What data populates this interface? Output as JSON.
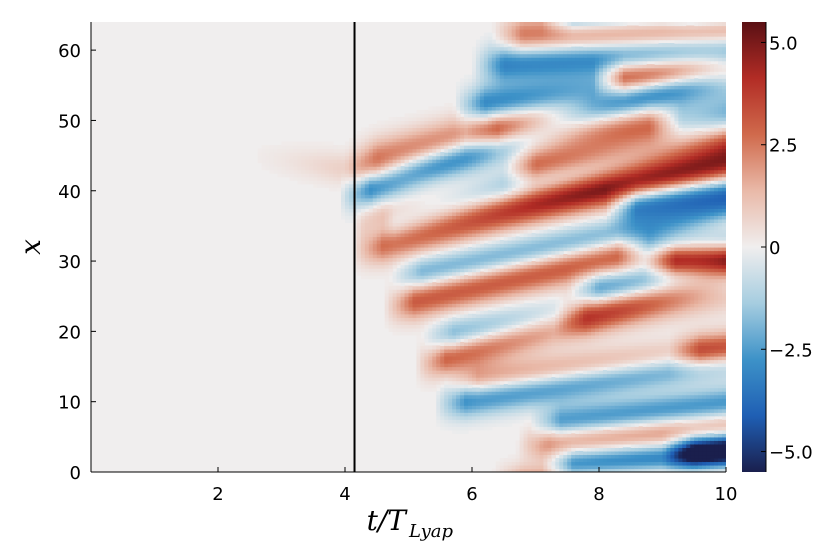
{
  "chart_data": {
    "type": "heatmap",
    "title": "",
    "xlabel_main": "t/T",
    "xlabel_sub": "Lyap",
    "ylabel": "x",
    "xlim": [
      0,
      10
    ],
    "ylim": [
      0,
      64
    ],
    "x_ticks": [
      2,
      4,
      6,
      8,
      10
    ],
    "y_ticks": [
      0,
      10,
      20,
      30,
      40,
      50,
      60
    ],
    "vertical_line_x": 4.15,
    "colorbar": {
      "range": [
        -5.5,
        5.5
      ],
      "ticks": [
        5.0,
        2.5,
        0,
        -2.5,
        -5.0
      ],
      "tick_labels": [
        "5.0",
        "2.5",
        "0",
        "−2.5",
        "−5.0"
      ],
      "colors": [
        "#1a1f4d",
        "#1f5fb4",
        "#3d92c8",
        "#a6cde0",
        "#f0eeee",
        "#e9b9a8",
        "#d06a4c",
        "#b22c25",
        "#5a1014"
      ]
    },
    "field_description_note": null,
    "bands": [
      {
        "t_start": 2.5,
        "x_start": 45,
        "slope": -1.2,
        "amp": 0.9,
        "width": 1.6,
        "t_peak": 4.4
      },
      {
        "t_start": 4.2,
        "x_start": 40,
        "slope": 3.0,
        "amp": -3.5,
        "width": 1.8
      },
      {
        "t_start": 4.3,
        "x_start": 44,
        "slope": 2.4,
        "amp": 2.6,
        "width": 2.0
      },
      {
        "t_start": 4.4,
        "x_start": 36,
        "slope": 1.2,
        "amp": 2.0,
        "width": 1.7
      },
      {
        "t_start": 4.4,
        "x_start": 32,
        "slope": 2.2,
        "amp": 3.0,
        "width": 1.8
      },
      {
        "t_start": 4.6,
        "x_start": 35,
        "slope": 2.6,
        "amp": -2.4,
        "width": 1.7
      },
      {
        "t_start": 4.9,
        "x_start": 24,
        "slope": 2.0,
        "amp": 3.2,
        "width": 1.8
      },
      {
        "t_start": 5.0,
        "x_start": 28,
        "slope": 1.8,
        "amp": -2.2,
        "width": 1.6
      },
      {
        "t_start": 5.4,
        "x_start": 16,
        "slope": 2.6,
        "amp": 3.4,
        "width": 1.8
      },
      {
        "t_start": 5.5,
        "x_start": 19,
        "slope": 1.6,
        "amp": -2.6,
        "width": 1.7
      },
      {
        "t_start": 5.7,
        "x_start": 10,
        "slope": 1.4,
        "amp": -3.0,
        "width": 1.7
      },
      {
        "t_start": 5.9,
        "x_start": 13,
        "slope": 1.0,
        "amp": 2.2,
        "width": 1.6
      },
      {
        "t_start": 6.0,
        "x_start": 52,
        "slope": 1.0,
        "amp": -3.4,
        "width": 1.9
      },
      {
        "t_start": 6.2,
        "x_start": 48,
        "slope": 0.6,
        "amp": 2.6,
        "width": 1.8
      },
      {
        "t_start": 6.3,
        "x_start": 58,
        "slope": 0.6,
        "amp": -3.2,
        "width": 1.9
      },
      {
        "t_start": 6.6,
        "x_start": 62,
        "slope": 0.2,
        "amp": 2.8,
        "width": 1.8
      },
      {
        "t_start": 6.8,
        "x_start": 43,
        "slope": 1.4,
        "amp": 3.6,
        "width": 1.9
      },
      {
        "t_start": 7.0,
        "x_start": 4,
        "slope": 0.8,
        "amp": 2.4,
        "width": 1.6
      },
      {
        "t_start": 7.2,
        "x_start": 7,
        "slope": 1.0,
        "amp": -2.8,
        "width": 1.6
      },
      {
        "t_start": 7.4,
        "x_start": 1,
        "slope": 0.6,
        "amp": -3.6,
        "width": 1.7
      },
      {
        "t_start": 7.6,
        "x_start": 22,
        "slope": 1.6,
        "amp": 3.2,
        "width": 1.8
      },
      {
        "t_start": 7.8,
        "x_start": 26,
        "slope": 0.8,
        "amp": -3.0,
        "width": 1.7
      },
      {
        "t_start": 8.2,
        "x_start": 56,
        "slope": 0.6,
        "amp": 4.8,
        "width": 1.7
      },
      {
        "t_start": 8.4,
        "x_start": 38,
        "slope": 1.2,
        "amp": -3.8,
        "width": 1.8
      },
      {
        "t_start": 8.6,
        "x_start": 32,
        "slope": 1.0,
        "amp": -4.2,
        "width": 1.6
      },
      {
        "t_start": 9.0,
        "x_start": 30,
        "slope": 0.4,
        "amp": 4.6,
        "width": 1.6
      },
      {
        "t_start": 9.1,
        "x_start": 50,
        "slope": 1.0,
        "amp": -3.6,
        "width": 1.7
      },
      {
        "t_start": 9.3,
        "x_start": 3,
        "slope": 0.8,
        "amp": -4.4,
        "width": 1.7
      },
      {
        "t_start": 9.4,
        "x_start": 17,
        "slope": 0.8,
        "amp": 3.0,
        "width": 1.7
      }
    ]
  }
}
